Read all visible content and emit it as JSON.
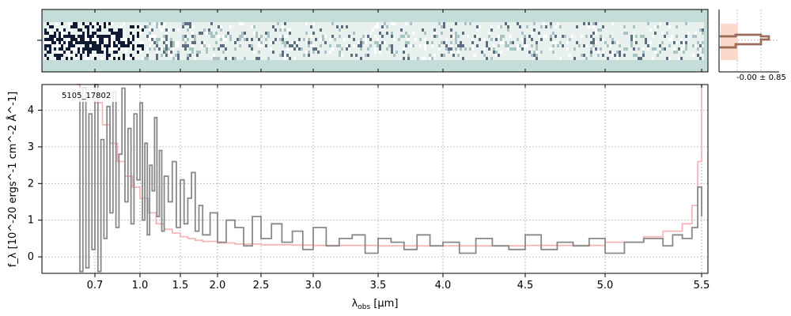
{
  "chart_data": {
    "type": "line",
    "object_id": "5105_17802",
    "xlabel_main": "λ",
    "xlabel_sub": "obs",
    "xlabel_unit": " [μm]",
    "ylabel": "f_λ [10^-20 ergs^-1 cm^-2 Å^-1]",
    "x_ticks": [
      {
        "value": 0.7,
        "label": "0.7"
      },
      {
        "value": 1.0,
        "label": "1.0"
      },
      {
        "value": 1.5,
        "label": "1.5"
      },
      {
        "value": 2.0,
        "label": "2.0"
      },
      {
        "value": 2.5,
        "label": "2.5"
      },
      {
        "value": 3.0,
        "label": "3.0"
      },
      {
        "value": 3.5,
        "label": "3.5"
      },
      {
        "value": 4.0,
        "label": "4.0"
      },
      {
        "value": 4.5,
        "label": "4.5"
      },
      {
        "value": 5.0,
        "label": "5.0"
      },
      {
        "value": 5.5,
        "label": "5.5"
      }
    ],
    "y_ticks": [
      0,
      1,
      2,
      3,
      4
    ],
    "ylim": [
      -0.45,
      4.7
    ],
    "grid": true,
    "profile_label": "-0.00 ± 0.85",
    "colors": {
      "flux": "#888888",
      "error": "#f4b6b6",
      "profile_fill": "#fbd5c8",
      "profile_line": "#4a3426",
      "spectrum_bg": "#c5ddd9",
      "spectrum_dark": "#1f2a44"
    },
    "series": [
      {
        "role": "flux",
        "x": [
          0.58,
          0.6,
          0.62,
          0.64,
          0.66,
          0.68,
          0.7,
          0.72,
          0.74,
          0.76,
          0.78,
          0.8,
          0.82,
          0.84,
          0.86,
          0.88,
          0.9,
          0.92,
          0.94,
          0.96,
          0.98,
          1.0,
          1.03,
          1.06,
          1.09,
          1.12,
          1.15,
          1.18,
          1.21,
          1.24,
          1.27,
          1.3,
          1.35,
          1.4,
          1.45,
          1.5,
          1.55,
          1.6,
          1.65,
          1.7,
          1.75,
          1.8,
          1.9,
          2.0,
          2.1,
          2.2,
          2.3,
          2.4,
          2.5,
          2.6,
          2.7,
          2.8,
          2.9,
          3.0,
          3.1,
          3.2,
          3.3,
          3.4,
          3.5,
          3.6,
          3.7,
          3.8,
          3.9,
          4.0,
          4.1,
          4.2,
          4.3,
          4.4,
          4.5,
          4.6,
          4.7,
          4.8,
          4.9,
          5.0,
          5.1,
          5.2,
          5.3,
          5.35,
          5.4,
          5.45,
          5.48,
          5.5
        ],
        "y": [
          4.5,
          -0.4,
          4.6,
          -0.3,
          3.9,
          0.2,
          4.7,
          -0.4,
          3.2,
          0.5,
          4.1,
          1.2,
          4.5,
          0.8,
          2.8,
          4.6,
          1.5,
          3.5,
          0.9,
          3.9,
          2.1,
          4.2,
          1.0,
          3.1,
          0.6,
          2.5,
          1.8,
          3.8,
          1.1,
          2.9,
          0.7,
          2.2,
          1.5,
          2.6,
          0.8,
          2.1,
          0.9,
          1.6,
          2.3,
          0.7,
          1.4,
          0.6,
          1.2,
          0.4,
          1.0,
          0.8,
          0.3,
          1.1,
          0.5,
          0.9,
          0.4,
          0.7,
          0.2,
          0.8,
          0.3,
          0.5,
          0.6,
          0.1,
          0.5,
          0.4,
          0.2,
          0.6,
          0.3,
          0.4,
          0.1,
          0.5,
          0.3,
          0.2,
          0.6,
          0.2,
          0.4,
          0.3,
          0.5,
          0.1,
          0.4,
          0.5,
          0.3,
          0.6,
          0.5,
          0.8,
          1.9,
          1.1
        ]
      },
      {
        "role": "error",
        "x": [
          0.58,
          0.6,
          0.65,
          0.7,
          0.75,
          0.8,
          0.85,
          0.9,
          0.95,
          1.0,
          1.1,
          1.2,
          1.3,
          1.4,
          1.5,
          1.6,
          1.7,
          1.8,
          2.0,
          2.2,
          2.5,
          2.8,
          3.0,
          3.5,
          4.0,
          4.5,
          5.0,
          5.2,
          5.3,
          5.4,
          5.45,
          5.48,
          5.5
        ],
        "y": [
          4.7,
          4.6,
          4.4,
          4.2,
          3.6,
          3.1,
          2.6,
          2.2,
          1.9,
          1.6,
          1.2,
          0.9,
          0.75,
          0.65,
          0.55,
          0.5,
          0.45,
          0.42,
          0.38,
          0.35,
          0.33,
          0.32,
          0.31,
          0.3,
          0.3,
          0.31,
          0.4,
          0.55,
          0.7,
          0.9,
          1.4,
          2.6,
          4.7
        ]
      }
    ]
  }
}
